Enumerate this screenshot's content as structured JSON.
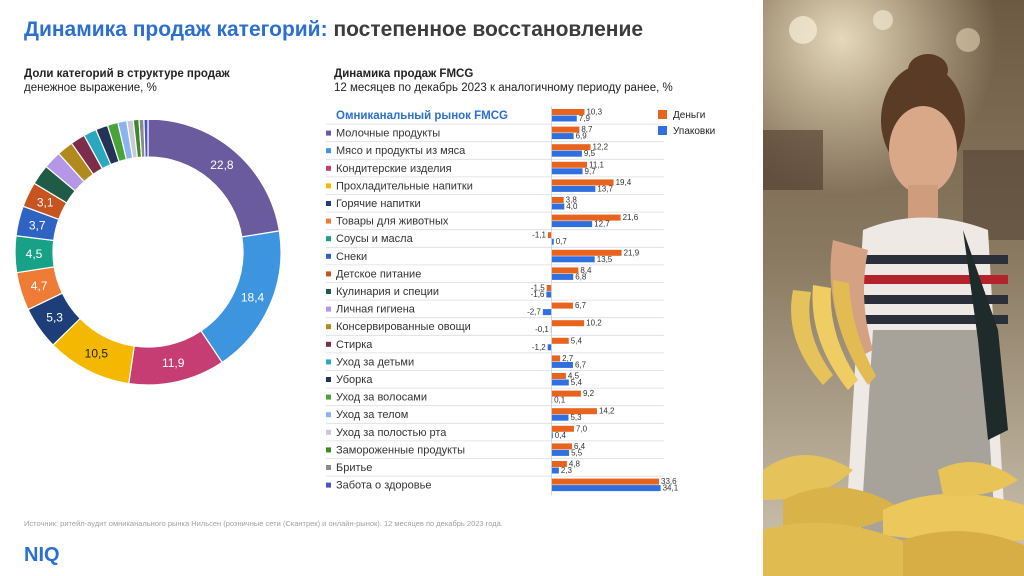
{
  "header": {
    "title_part1": "Динамика продаж категорий:",
    "title_part2": "постепенное восстановление"
  },
  "left_panel": {
    "heading": "Доли категорий в структуре продаж",
    "subheading": "денежное выражение, %"
  },
  "right_panel": {
    "heading": "Динамика продаж FMCG",
    "subheading": "12 месяцев по декабрь 2023 к аналогичному периоду ранее, %"
  },
  "footnote": "Источник: ритейл-аудит омниканального рынка Нильсен (розничные сети (Скантрек) и онлайн-рынок). 12 месяцев по декабрь 2023 года.",
  "logo": "NIQ",
  "colors": {
    "money": "#e8641e",
    "packs": "#2f6fe0",
    "accent": "#2b6fd0"
  },
  "chart_data": [
    {
      "type": "pie",
      "donut": true,
      "title": "Доли категорий в структуре продаж",
      "subtitle": "денежное выражение, %",
      "slices": [
        {
          "category": "Молочные продукты",
          "value": 22.8,
          "label": "22,8",
          "color": "#6a5a9e"
        },
        {
          "category": "Мясо и продукты из мяса",
          "value": 18.4,
          "label": "18,4",
          "color": "#3d95e0"
        },
        {
          "category": "Кондитерские изделия",
          "value": 11.9,
          "label": "11,9",
          "color": "#c63d73"
        },
        {
          "category": "Прохладительные напитки",
          "value": 10.5,
          "label": "10,5",
          "color": "#f5b800"
        },
        {
          "category": "Горячие напитки",
          "value": 5.3,
          "label": "5,3",
          "color": "#1d3e78"
        },
        {
          "category": "Товары для животных",
          "value": 4.7,
          "label": "4,7",
          "color": "#ee7b36"
        },
        {
          "category": "Соусы и масла",
          "value": 4.5,
          "label": "4,5",
          "color": "#17a287"
        },
        {
          "category": "Снеки",
          "value": 3.7,
          "label": "3,7",
          "color": "#2e63c4"
        },
        {
          "category": "Детское питание",
          "value": 3.1,
          "label": "3,1",
          "color": "#c7531e"
        },
        {
          "category": "Кулинария и специи",
          "value": 2.5,
          "label": "",
          "color": "#1f5b46"
        },
        {
          "category": "Личная гигиена",
          "value": 2.2,
          "label": "",
          "color": "#b597e8"
        },
        {
          "category": "Консервированные овощи",
          "value": 2.0,
          "label": "",
          "color": "#b08a1c"
        },
        {
          "category": "Стирка",
          "value": 1.8,
          "label": "",
          "color": "#7d2c4b"
        },
        {
          "category": "Уход за детьми",
          "value": 1.6,
          "label": "",
          "color": "#2aa8c0"
        },
        {
          "category": "Уборка",
          "value": 1.5,
          "label": "",
          "color": "#243357"
        },
        {
          "category": "Уход за волосами",
          "value": 1.3,
          "label": "",
          "color": "#4aa33a"
        },
        {
          "category": "Уход за телом",
          "value": 1.1,
          "label": "",
          "color": "#8ab3f0"
        },
        {
          "category": "Уход за полостью рта",
          "value": 0.8,
          "label": "",
          "color": "#c9c9d8"
        },
        {
          "category": "Замороженные продукты",
          "value": 0.7,
          "label": "",
          "color": "#3a8a2a"
        },
        {
          "category": "Бритье",
          "value": 0.6,
          "label": "",
          "color": "#8a8a8a"
        },
        {
          "category": "Забота о здоровье",
          "value": 0.5,
          "label": "",
          "color": "#4a54c8"
        }
      ]
    },
    {
      "type": "bar",
      "orientation": "horizontal",
      "title": "Динамика продаж FMCG",
      "subtitle": "12 месяцев по декабрь 2023 к аналогичному периоду ранее, %",
      "categories": [
        "Омниканальный рынок FMCG",
        "Молочные продукты",
        "Мясо и продукты из мяса",
        "Кондитерские изделия",
        "Прохладительные напитки",
        "Горячие напитки",
        "Товары для животных",
        "Соусы и масла",
        "Снеки",
        "Детское питание",
        "Кулинария и специи",
        "Личная гигиена",
        "Консервированные овощи",
        "Стирка",
        "Уход за детьми",
        "Уборка",
        "Уход за волосами",
        "Уход за телом",
        "Уход за полостью рта",
        "Замороженные продукты",
        "Бритье",
        "Забота о здоровье"
      ],
      "marker_colors": [
        "",
        "#6a5a9e",
        "#3d95e0",
        "#c63d73",
        "#f5b800",
        "#1d3e78",
        "#ee7b36",
        "#17a287",
        "#2e63c4",
        "#c7531e",
        "#1f5b46",
        "#b597e8",
        "#b08a1c",
        "#7d2c4b",
        "#2aa8c0",
        "#243357",
        "#4aa33a",
        "#8ab3f0",
        "#c9c9d8",
        "#3a8a2a",
        "#8a8a8a",
        "#4a54c8"
      ],
      "series": [
        {
          "name": "Деньги",
          "color": "#e8641e",
          "values": [
            10.3,
            8.7,
            12.2,
            11.1,
            19.4,
            3.8,
            21.6,
            -1.1,
            21.9,
            8.4,
            -1.5,
            6.7,
            10.2,
            5.4,
            2.7,
            4.5,
            9.2,
            14.2,
            7.0,
            6.4,
            4.8,
            33.6
          ],
          "labels": [
            "10,3",
            "8,7",
            "12,2",
            "11,1",
            "19,4",
            "3,8",
            "21,6",
            "-1,1",
            "21,9",
            "8,4",
            "-1,5",
            "6,7",
            "10,2",
            "5,4",
            "2,7",
            "4,5",
            "9,2",
            "14,2",
            "7,0",
            "6,4",
            "4,8",
            "33,6"
          ]
        },
        {
          "name": "Упаковки",
          "color": "#2f6fe0",
          "values": [
            7.9,
            6.9,
            9.5,
            9.7,
            13.7,
            4.0,
            12.7,
            0.7,
            13.5,
            6.8,
            -1.6,
            -2.7,
            -0.1,
            -1.2,
            6.7,
            5.4,
            0.1,
            5.3,
            0.4,
            5.5,
            2.3,
            34.1
          ],
          "labels": [
            "7,9",
            "6,9",
            "9,5",
            "9,7",
            "13,7",
            "4,0",
            "12,7",
            "0,7",
            "13,5",
            "6,8",
            "-1,6",
            "-2,7",
            "-0,1",
            "-1,2",
            "6,7",
            "5,4",
            "0,1",
            "5,3",
            "0,4",
            "5,5",
            "2,3",
            "34,1"
          ]
        }
      ],
      "legend": "top-right"
    }
  ]
}
